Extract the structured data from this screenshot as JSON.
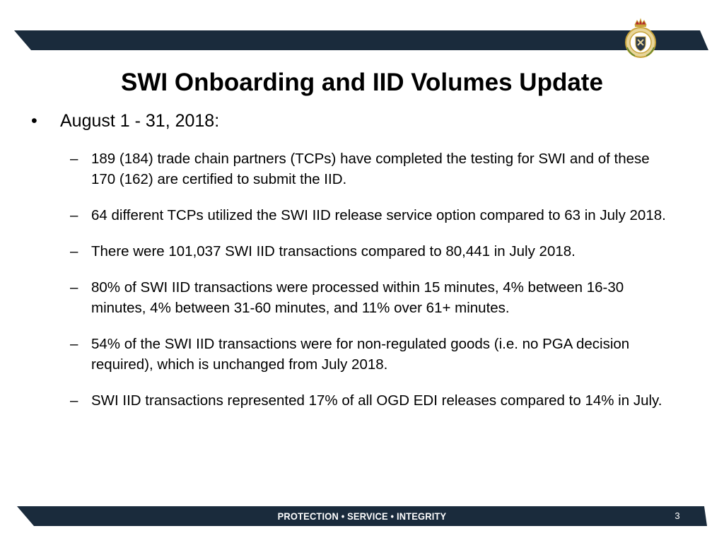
{
  "title": "SWI Onboarding and IID Volumes Update",
  "main_bullet": {
    "marker": "•",
    "text": "August 1 - 31, 2018:"
  },
  "sub_bullets": [
    {
      "marker": "–",
      "text": "189 (184) trade chain partners (TCPs) have completed the testing for SWI and of these 170 (162) are certified to submit the IID."
    },
    {
      "marker": "–",
      "text": "64 different TCPs utilized the SWI IID release service option compared to 63 in July 2018."
    },
    {
      "marker": "–",
      "text": "There were 101,037 SWI IID transactions compared to 80,441 in July 2018."
    },
    {
      "marker": "–",
      "text": "80% of SWI IID transactions were processed within 15 minutes, 4% between 16-30 minutes, 4% between 31-60 minutes, and 11% over 61+ minutes."
    },
    {
      "marker": "–",
      "text": "54% of the SWI IID transactions were for non-regulated goods (i.e. no PGA decision required), which is unchanged from July 2018."
    },
    {
      "marker": "–",
      "text": "SWI IID transactions represented 17% of all OGD EDI releases compared to 14% in July."
    }
  ],
  "footer": {
    "motto": "PROTECTION • SERVICE • INTEGRITY",
    "page_number": "3"
  },
  "colors": {
    "bar": "#1a2b3c",
    "crest_gold": "#c9a43a",
    "crest_red": "#b3262c",
    "text": "#000000"
  },
  "icons": {
    "crest": "agency-crest-icon"
  }
}
